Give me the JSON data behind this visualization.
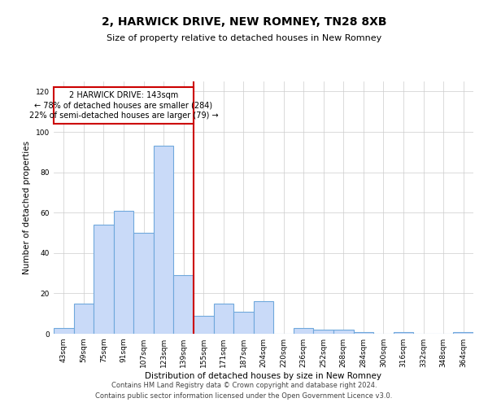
{
  "title": "2, HARWICK DRIVE, NEW ROMNEY, TN28 8XB",
  "subtitle": "Size of property relative to detached houses in New Romney",
  "xlabel": "Distribution of detached houses by size in New Romney",
  "ylabel": "Number of detached properties",
  "footnote1": "Contains HM Land Registry data © Crown copyright and database right 2024.",
  "footnote2": "Contains public sector information licensed under the Open Government Licence v3.0.",
  "annotation_line1": "2 HARWICK DRIVE: 143sqm",
  "annotation_line2": "← 78% of detached houses are smaller (284)",
  "annotation_line3": "22% of semi-detached houses are larger (79) →",
  "bar_categories": [
    "43sqm",
    "59sqm",
    "75sqm",
    "91sqm",
    "107sqm",
    "123sqm",
    "139sqm",
    "155sqm",
    "171sqm",
    "187sqm",
    "204sqm",
    "220sqm",
    "236sqm",
    "252sqm",
    "268sqm",
    "284sqm",
    "300sqm",
    "316sqm",
    "332sqm",
    "348sqm",
    "364sqm"
  ],
  "bar_values": [
    3,
    15,
    54,
    61,
    50,
    93,
    29,
    9,
    15,
    11,
    16,
    0,
    3,
    2,
    2,
    1,
    0,
    1,
    0,
    0,
    1
  ],
  "bar_color": "#c9daf8",
  "bar_edge_color": "#6fa8dc",
  "vline_color": "#cc0000",
  "vline_x_index": 6.5,
  "annotation_box_color": "#cc0000",
  "ylim": [
    0,
    125
  ],
  "yticks": [
    0,
    20,
    40,
    60,
    80,
    100,
    120
  ],
  "grid_color": "#cccccc",
  "background_color": "#ffffff",
  "title_fontsize": 10,
  "subtitle_fontsize": 8,
  "axis_label_fontsize": 7.5,
  "tick_fontsize": 6.5,
  "annotation_fontsize": 7,
  "footnote_fontsize": 6
}
